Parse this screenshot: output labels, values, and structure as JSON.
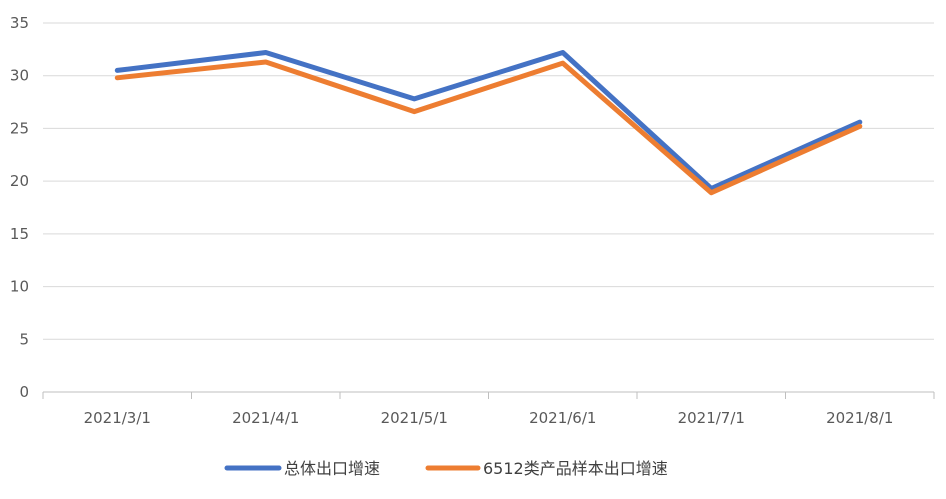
{
  "chart_data": {
    "type": "line",
    "title": "",
    "xlabel": "",
    "ylabel": "",
    "categories": [
      "2021/3/1",
      "2021/4/1",
      "2021/5/1",
      "2021/6/1",
      "2021/7/1",
      "2021/8/1"
    ],
    "ylim": [
      0,
      35
    ],
    "yticks": [
      0,
      5,
      10,
      15,
      20,
      25,
      30,
      35
    ],
    "grid": true,
    "legend_position": "bottom",
    "series": [
      {
        "name": "总体出口增速",
        "color": "#4472C4",
        "values": [
          30.5,
          32.2,
          27.8,
          32.2,
          19.3,
          25.6
        ]
      },
      {
        "name": "6512类产品样本出口增速",
        "color": "#ED7D31",
        "values": [
          29.8,
          31.3,
          26.6,
          31.2,
          18.9,
          25.2
        ]
      }
    ]
  }
}
